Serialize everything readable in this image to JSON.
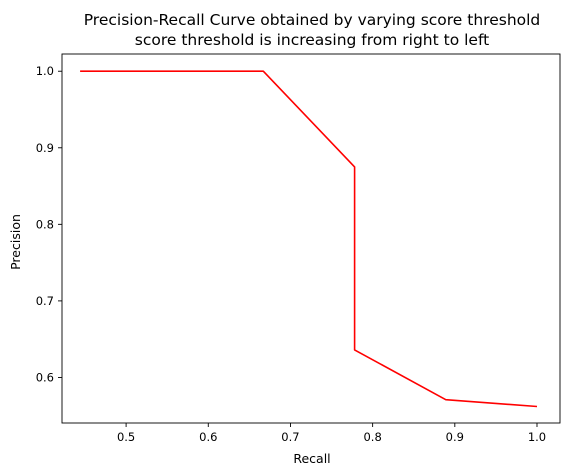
{
  "chart_data": {
    "type": "line",
    "title": "Precision-Recall Curve obtained by varying score threshold",
    "subtitle": "score threshold is increasing from right to left",
    "xlabel": "Recall",
    "ylabel": "Precision",
    "xlim": [
      0.422,
      1.028
    ],
    "ylim": [
      0.5405,
      1.0225
    ],
    "xticks": [
      0.5,
      0.6,
      0.7,
      0.8,
      0.9,
      1.0
    ],
    "xtick_labels": [
      "0.5",
      "0.6",
      "0.7",
      "0.8",
      "0.9",
      "1.0"
    ],
    "yticks": [
      0.6,
      0.7,
      0.8,
      0.9,
      1.0
    ],
    "ytick_labels": [
      "0.6",
      "0.7",
      "0.8",
      "0.9",
      "1.0"
    ],
    "grid": false,
    "series": [
      {
        "color": "#ff0000",
        "x": [
          0.444,
          0.667,
          0.778,
          0.778,
          0.889,
          1.0
        ],
        "y": [
          1.0,
          1.0,
          0.875,
          0.636,
          0.571,
          0.562
        ]
      }
    ]
  }
}
